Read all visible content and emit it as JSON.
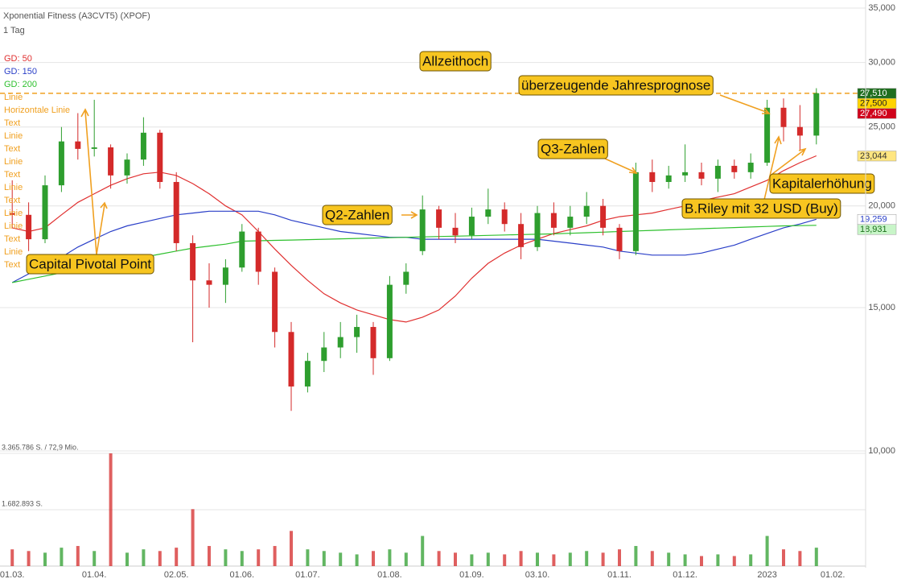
{
  "chart_data": {
    "type": "candlestick",
    "title": "Xponential Fitness (A3CVT5) (XPOF)",
    "subtitle": "1 Tag",
    "log_scale": true,
    "grid": true,
    "up_color": "#2e9e2e",
    "down_color": "#d42a2a",
    "ylim": [
      10000,
      35000
    ],
    "yticks": [
      {
        "value": 10000,
        "label": "10,000"
      },
      {
        "value": 15000,
        "label": "15,000"
      },
      {
        "value": 20000,
        "label": "20,000"
      },
      {
        "value": 25000,
        "label": "25,000"
      },
      {
        "value": 30000,
        "label": "30,000"
      },
      {
        "value": 35000,
        "label": "35,000"
      }
    ],
    "categories": [
      "01.03.",
      null,
      null,
      null,
      null,
      "01.04.",
      null,
      null,
      null,
      null,
      "02.05.",
      null,
      null,
      null,
      "01.06.",
      null,
      null,
      null,
      "01.07.",
      null,
      null,
      null,
      null,
      "01.08.",
      null,
      null,
      null,
      null,
      "01.09.",
      null,
      null,
      null,
      "03.10.",
      null,
      null,
      null,
      null,
      "01.11.",
      null,
      null,
      null,
      "01.12.",
      null,
      null,
      null,
      null,
      "2023",
      null,
      null,
      null,
      "01.02."
    ],
    "open": [
      19600,
      19500,
      18200,
      21200,
      24000,
      23500,
      23600,
      21800,
      22800,
      24600,
      21400,
      18000,
      16200,
      16000,
      16800,
      18600,
      16600,
      14000,
      12000,
      12900,
      13400,
      13800,
      14200,
      13000,
      16000,
      17600,
      19800,
      18800,
      18400,
      19400,
      19800,
      19000,
      17800,
      19600,
      18800,
      19400,
      20000,
      18800,
      17600,
      22000,
      21400,
      21800,
      22000,
      21600,
      22400,
      22000,
      22600,
      26400,
      25000,
      24400,
      null
    ],
    "high": [
      21500,
      20200,
      21800,
      25000,
      26000,
      27000,
      23800,
      23200,
      25700,
      24800,
      22000,
      18400,
      17000,
      17200,
      19000,
      18800,
      16800,
      14400,
      13200,
      14000,
      14400,
      14700,
      14400,
      16400,
      17000,
      20600,
      20000,
      19600,
      19900,
      21000,
      20200,
      19600,
      20000,
      20200,
      20000,
      20800,
      20400,
      19000,
      22600,
      22800,
      22400,
      23800,
      22600,
      22800,
      22800,
      23200,
      27000,
      27100,
      26600,
      27900,
      null
    ],
    "low": [
      18800,
      17600,
      18000,
      20800,
      22800,
      23000,
      21000,
      21300,
      22400,
      21000,
      17600,
      13600,
      15000,
      15200,
      16600,
      16000,
      13400,
      11200,
      11800,
      12500,
      13000,
      13200,
      12400,
      12900,
      15600,
      17400,
      18200,
      18000,
      18200,
      19000,
      18600,
      17200,
      17600,
      18400,
      18400,
      19000,
      18400,
      17200,
      17400,
      20800,
      21000,
      21400,
      21200,
      20800,
      21600,
      21600,
      22400,
      24000,
      23400,
      23800,
      null
    ],
    "close": [
      19500,
      18200,
      21200,
      24000,
      23500,
      23600,
      21800,
      22800,
      24600,
      21400,
      18000,
      16200,
      16000,
      16800,
      18600,
      16600,
      14000,
      12000,
      12900,
      13400,
      13800,
      14200,
      13000,
      16000,
      16600,
      19800,
      18800,
      18400,
      19400,
      19800,
      19000,
      17800,
      19600,
      18800,
      19400,
      20000,
      18800,
      17600,
      22000,
      21400,
      21800,
      22000,
      21600,
      22400,
      22000,
      22600,
      26400,
      25000,
      24400,
      27510,
      null
    ],
    "series": [
      {
        "name": "GD: 50",
        "color": "#e03030",
        "values": [
          18800,
          18600,
          18800,
          19500,
          20200,
          20700,
          21200,
          21600,
          21900,
          22000,
          21800,
          21300,
          20700,
          20000,
          19500,
          18600,
          17700,
          16900,
          16200,
          15600,
          15200,
          14900,
          14700,
          14500,
          14400,
          14600,
          14900,
          15500,
          16300,
          17000,
          17500,
          17900,
          18200,
          18500,
          18700,
          18900,
          19200,
          19400,
          19500,
          19600,
          19800,
          20000,
          20300,
          20500,
          20700,
          21100,
          21500,
          22100,
          22600,
          23044,
          null
        ]
      },
      {
        "name": "GD: 150",
        "color": "#2a3fc8",
        "values": [
          16100,
          16500,
          16900,
          17300,
          17800,
          18200,
          18600,
          18900,
          19100,
          19300,
          19500,
          19600,
          19700,
          19700,
          19700,
          19700,
          19500,
          19200,
          19000,
          18800,
          18600,
          18500,
          18400,
          18300,
          18300,
          18200,
          18200,
          18200,
          18200,
          18200,
          18200,
          18200,
          18200,
          18100,
          18000,
          17900,
          17800,
          17600,
          17500,
          17400,
          17400,
          17400,
          17500,
          17700,
          17900,
          18200,
          18500,
          18800,
          19000,
          19259,
          null
        ]
      },
      {
        "name": "GD: 200",
        "color": "#2ec02e",
        "values": [
          16100,
          16250,
          16400,
          16550,
          16700,
          16850,
          17000,
          17150,
          17300,
          17450,
          17600,
          17750,
          17850,
          17950,
          18100,
          18120,
          18140,
          18160,
          18180,
          18200,
          18220,
          18240,
          18260,
          18280,
          18300,
          18320,
          18340,
          18360,
          18380,
          18400,
          18420,
          18440,
          18460,
          18480,
          18510,
          18540,
          18570,
          18600,
          18630,
          18660,
          18690,
          18720,
          18750,
          18780,
          18810,
          18840,
          18870,
          18900,
          18915,
          18931,
          null
        ]
      }
    ],
    "price_labels": [
      {
        "value": 27510,
        "label": "27,510",
        "color": "#1f6e1f",
        "text_color": "#ffffff"
      },
      {
        "value": 27500,
        "label": "27,500",
        "color": "#ffd400",
        "text_color": "#222222",
        "dashed_line": true,
        "line_color": "#f0a020"
      },
      {
        "value": 27490,
        "label": "27,490",
        "color": "#d0021b",
        "text_color": "#ffffff"
      },
      {
        "value": 23044,
        "label": "23,044",
        "color": "#ffe680",
        "text_color": "#333333"
      },
      {
        "value": 19259,
        "label": "19,259",
        "color": "#ffffff",
        "text_color": "#2a3fc8"
      },
      {
        "value": 18931,
        "label": "18,931",
        "color": "#c8f5c8",
        "text_color": "#1a6e1a"
      }
    ],
    "drawing_list": [
      "Linie",
      "Horizontale Linie",
      "Text",
      "Linie",
      "Text",
      "Linie",
      "Text",
      "Linie",
      "Text",
      "Linie",
      "Linie",
      "Text",
      "Linie",
      "Text"
    ],
    "drawing_color": "#f0a020",
    "annotations": [
      "Allzeithoch",
      "überzeugende Jahresprognose",
      "Q3-Zahlen",
      "Kapitalerhöhung",
      "B.Riley mit 32 USD (Buy)",
      "Q2-Zahlen",
      "Capital Pivotal Point"
    ],
    "annotation_color": "#f7c520",
    "volume": {
      "ylim": [
        0,
        3365786
      ],
      "yticks": [
        {
          "value": 3365786,
          "label": "3.365.786 S. / 72,9 Mio."
        },
        {
          "value": 1682893,
          "label": "1.682.893 S."
        }
      ],
      "values": [
        500000,
        450000,
        400000,
        550000,
        600000,
        450000,
        3365786,
        400000,
        500000,
        450000,
        550000,
        1700000,
        600000,
        500000,
        450000,
        500000,
        600000,
        1050000,
        500000,
        450000,
        400000,
        350000,
        450000,
        500000,
        400000,
        900000,
        450000,
        400000,
        350000,
        400000,
        350000,
        450000,
        400000,
        350000,
        400000,
        450000,
        400000,
        500000,
        600000,
        450000,
        400000,
        350000,
        300000,
        350000,
        300000,
        350000,
        900000,
        500000,
        450000,
        550000,
        null
      ]
    }
  }
}
